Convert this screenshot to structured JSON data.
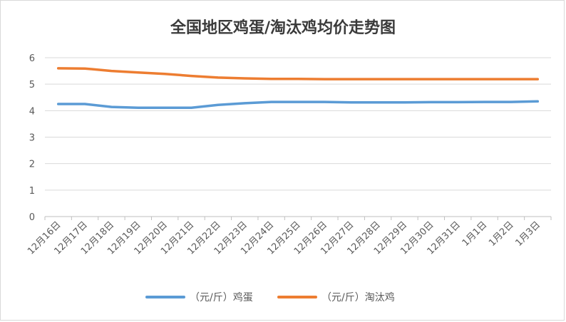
{
  "chart_data": {
    "type": "line",
    "title": "全国地区鸡蛋/淘汰鸡均价走势图",
    "xlabel": "",
    "ylabel": "",
    "ylim": [
      0,
      6
    ],
    "yticks": [
      "0",
      "1",
      "2",
      "3",
      "4",
      "5",
      "6"
    ],
    "grid": true,
    "legend_position": "bottom",
    "categories": [
      "12月16日",
      "12月17日",
      "12月18日",
      "12月19日",
      "12月20日",
      "12月21日",
      "12月22日",
      "12月23日",
      "12月24日",
      "12月25日",
      "12月26日",
      "12月27日",
      "12月28日",
      "12月29日",
      "12月30日",
      "12月31日",
      "1月1日",
      "1月2日",
      "1月3日"
    ],
    "series": [
      {
        "name": "（元/斤）鸡蛋",
        "color": "#5b9bd5",
        "values": [
          4.25,
          4.25,
          4.14,
          4.11,
          4.11,
          4.11,
          4.22,
          4.28,
          4.33,
          4.33,
          4.33,
          4.31,
          4.31,
          4.31,
          4.32,
          4.32,
          4.33,
          4.33,
          4.35
        ]
      },
      {
        "name": "（元/斤）淘汰鸡",
        "color": "#ed7d31",
        "values": [
          5.6,
          5.59,
          5.5,
          5.44,
          5.39,
          5.31,
          5.25,
          5.22,
          5.2,
          5.2,
          5.19,
          5.19,
          5.19,
          5.19,
          5.19,
          5.19,
          5.19,
          5.19,
          5.19
        ]
      }
    ]
  }
}
